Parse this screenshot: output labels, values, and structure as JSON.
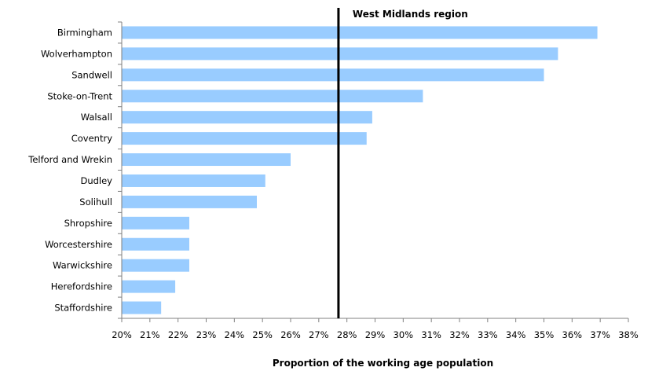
{
  "chart_data": {
    "type": "bar",
    "orientation": "horizontal",
    "categories": [
      "Birmingham",
      "Wolverhampton",
      "Sandwell",
      "Stoke-on-Trent",
      "Walsall",
      "Coventry",
      "Telford and Wrekin",
      "Dudley",
      "Solihull",
      "Shropshire",
      "Worcestershire",
      "Warwickshire",
      "Herefordshire",
      "Staffordshire"
    ],
    "values": [
      36.9,
      35.5,
      35.0,
      30.7,
      28.9,
      28.7,
      26.0,
      25.1,
      24.8,
      22.4,
      22.4,
      22.4,
      21.9,
      21.4
    ],
    "xlabel": "Proportion of the working age population",
    "xlim": [
      20,
      38
    ],
    "xticks": [
      "20%",
      "21%",
      "22%",
      "23%",
      "24%",
      "25%",
      "26%",
      "27%",
      "28%",
      "29%",
      "30%",
      "31%",
      "32%",
      "33%",
      "34%",
      "35%",
      "36%",
      "37%",
      "38%"
    ],
    "reference_line": {
      "label": "West Midlands region",
      "value": 27.7
    },
    "colors": {
      "bar": "#99ccff",
      "reference_line": "#000000",
      "axis": "#808080"
    },
    "grid": false
  }
}
